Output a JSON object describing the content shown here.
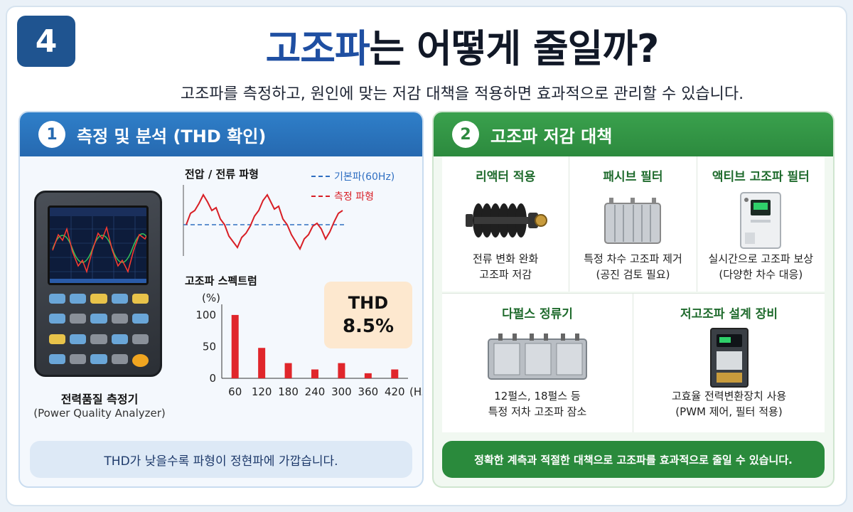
{
  "badge": "4",
  "title": {
    "highlight": "고조파",
    "rest": "는 어떻게 줄일까?"
  },
  "subtitle": "고조파를 측정하고, 원인에 맞는 저감 대책을 적용하면 효과적으로 관리할 수 있습니다.",
  "left": {
    "num": "1",
    "heading": "측정 및 분석 (THD 확인)",
    "device_label": "전력품질 측정기",
    "device_sub": "(Power Quality Analyzer)",
    "wave_title": "전압 / 전류 파형",
    "legend_fundamental": "기본파(60Hz)",
    "legend_measured": "측정 파형",
    "spectrum_title": "고조파 스펙트럼",
    "thd_label": "THD",
    "thd_value": "8.5%",
    "note": "THD가 낮을수록 파형이 정현파에 가깝습니다."
  },
  "chart_data": {
    "type": "bar",
    "title": "고조파 스펙트럼",
    "ylabel": "(%)",
    "xunit": "(Hz)",
    "categories": [
      "60",
      "120",
      "180",
      "240",
      "300",
      "360",
      "420"
    ],
    "values": [
      100,
      48,
      24,
      14,
      24,
      8,
      14
    ],
    "ylim": [
      0,
      110
    ],
    "yticks": [
      "0",
      "50",
      "100"
    ],
    "color": "#e0262b"
  },
  "right": {
    "num": "2",
    "heading": "고조파 저감 대책",
    "cards_top": [
      {
        "title": "리액터 적용",
        "l1": "전류 변화 완화",
        "l2": "고조파 저감",
        "icon": "reactor-icon"
      },
      {
        "title": "패시브 필터",
        "l1": "특정 차수 고조파 제거",
        "l2": "(공진 검토 필요)",
        "icon": "passive-filter-icon"
      },
      {
        "title": "액티브 고조파 필터",
        "l1": "실시간으로 고조파 보상",
        "l2": "(다양한 차수 대응)",
        "icon": "active-filter-icon"
      }
    ],
    "cards_bottom": [
      {
        "title": "다펄스 정류기",
        "l1": "12펄스, 18펄스 등",
        "l2": "특정 저차 고조파 잠소",
        "icon": "multipulse-rectifier-icon"
      },
      {
        "title": "저고조파 설계 장비",
        "l1": "고효율 전력변환장치 사용",
        "l2": "(PWM 제어, 필터 적용)",
        "icon": "inverter-drive-icon"
      }
    ],
    "note": "정확한 계측과 적절한 대책으로 고조파를 효과적으로 줄일 수 있습니다."
  },
  "colors": {
    "blue": "#2669b0",
    "green": "#2c8a3e",
    "red": "#e0262b",
    "thd_bg": "#fde8cf"
  }
}
